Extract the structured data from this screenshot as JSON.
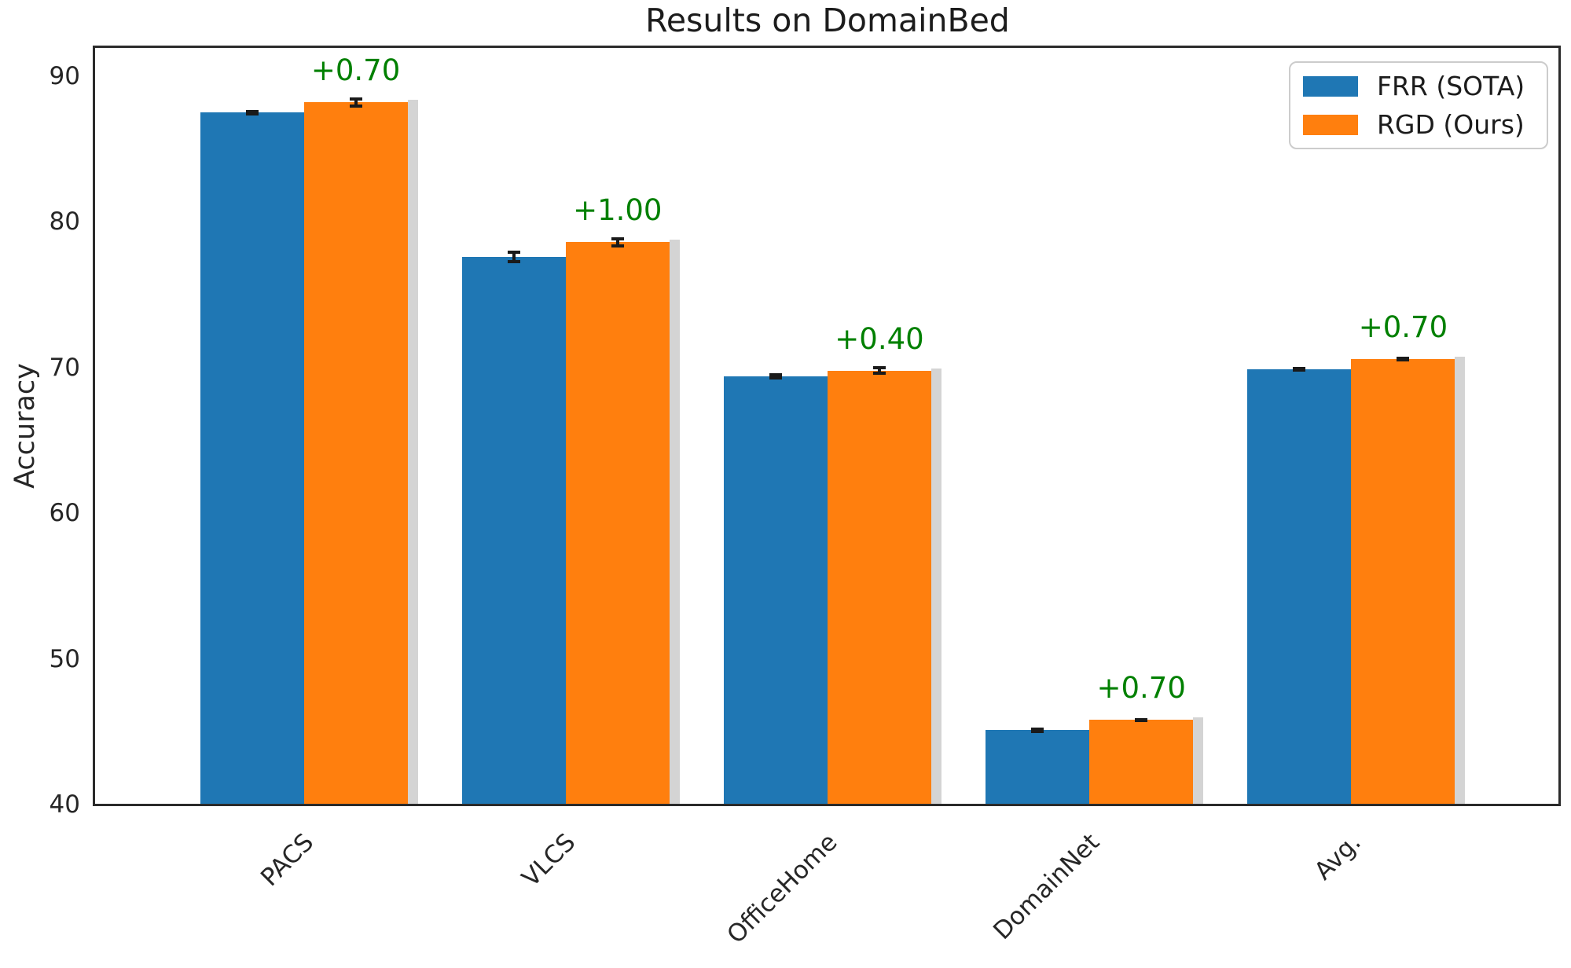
{
  "chart_data": {
    "type": "bar",
    "title": "Results on DomainBed",
    "ylabel": "Accuracy",
    "categories": [
      "PACS",
      "VLCS",
      "OfficeHome",
      "DomainNet",
      "Avg."
    ],
    "series": [
      {
        "name": "FRR (SOTA)",
        "color": "#1f77b4",
        "values": [
          87.5,
          77.6,
          69.4,
          45.1,
          69.9
        ],
        "errors": [
          0.1,
          0.3,
          0.1,
          0.1,
          0.05
        ]
      },
      {
        "name": "RGD (Ours)",
        "color": "#ff7f0e",
        "values": [
          88.2,
          78.6,
          69.8,
          45.8,
          70.6
        ],
        "errors": [
          0.25,
          0.25,
          0.2,
          0.05,
          0.05
        ]
      }
    ],
    "gain_labels": [
      "+0.70",
      "+1.00",
      "+0.40",
      "+0.70",
      "+0.70"
    ],
    "gain_color": "#008000",
    "y_ticks": [
      40,
      50,
      60,
      70,
      80,
      90
    ],
    "ylim": [
      40,
      92
    ],
    "grid": false,
    "hatch": "horizontal-lines",
    "legend_position": "upper right",
    "axis_color": "#2b2b2b",
    "error_bar_color": "#1a1a1a",
    "shadow_color": "#d4d4d4"
  }
}
